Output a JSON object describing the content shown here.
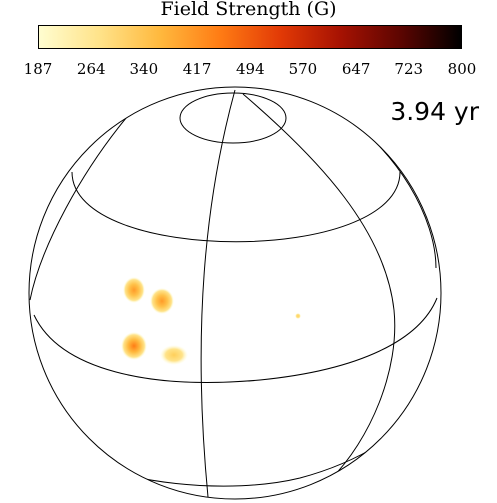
{
  "colorbar": {
    "title": "Field Strength (G)",
    "ticks": [
      "187",
      "264",
      "340",
      "417",
      "494",
      "570",
      "647",
      "723",
      "800"
    ],
    "min": 187,
    "max": 800,
    "colors": [
      "#fffdd0",
      "#ffe38a",
      "#ffb93e",
      "#ff7c14",
      "#e23a06",
      "#a61202",
      "#5c0501",
      "#000000"
    ]
  },
  "time_label": "3.94 yr"
}
